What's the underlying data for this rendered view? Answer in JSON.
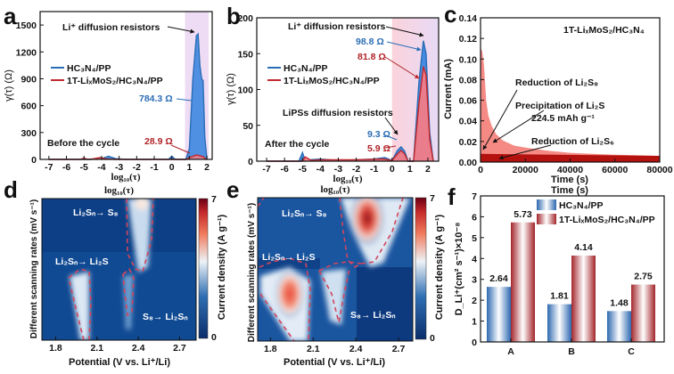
{
  "panels": {
    "a": "a",
    "b": "b",
    "c": "c",
    "d": "d",
    "e": "e",
    "f": "f"
  },
  "colors": {
    "blue_line": "#2a6db5",
    "blue_fill": "#3d87e0",
    "red_line": "#c0282d",
    "red_fill": "#f27c86",
    "c_light": "#f58a84",
    "c_dark": "#b3120f"
  },
  "chart_data": [
    {
      "id": "a",
      "type": "area",
      "xlabel": "log₁₀(τ)",
      "ylabel": "γ(τ) (Ω)",
      "xlim": [
        -7.5,
        2.3
      ],
      "ylim": [
        0,
        1650
      ],
      "xticks": [
        -7,
        -6,
        -5,
        -4,
        -3,
        -2,
        -1,
        0,
        1,
        2
      ],
      "yticks": [
        0,
        300,
        600,
        900,
        1200,
        1500
      ],
      "highlight_range": [
        0.75,
        2.1
      ],
      "series": [
        {
          "name": "HC₃N₄/PP",
          "x": [
            -7,
            -5.2,
            -4.6,
            -4,
            -3.6,
            -3.2,
            -2.6,
            -1.2,
            -1,
            -0.8,
            -0.2,
            0,
            0.2,
            0.8,
            1.0,
            1.2,
            1.4,
            1.5,
            1.6,
            1.7,
            1.78,
            1.88,
            2.0
          ],
          "y": [
            0,
            0,
            0,
            10,
            35,
            8,
            0,
            0,
            3,
            0,
            0,
            35,
            0,
            0,
            120,
            900,
            1380,
            1400,
            1050,
            900,
            880,
            250,
            0
          ]
        },
        {
          "name": "1T-LiₓMoS₂/HC₃N₄/PP",
          "x": [
            -7,
            -5.2,
            -5,
            -4.8,
            -4.5,
            -4.1,
            -3.7,
            -3.2,
            0.8,
            1.0,
            1.4,
            1.8,
            1.95,
            2.0
          ],
          "y": [
            0,
            0,
            15,
            0,
            5,
            20,
            5,
            0,
            0,
            20,
            50,
            30,
            0,
            0
          ]
        }
      ],
      "annotations": {
        "title": "Li⁺ diffusion resistors",
        "blue_value": "784.3 Ω",
        "red_value": "28.9 Ω",
        "condition": "Before the cycle"
      }
    },
    {
      "id": "b",
      "type": "area",
      "xlabel": "log₁₀(τ)",
      "ylabel": "γ(τ) (Ω)",
      "xlim": [
        -7.55,
        2.6
      ],
      "ylim": [
        0,
        200
      ],
      "xticks": [
        -7,
        -6,
        -5,
        -4,
        -3,
        -2,
        -1,
        0,
        1,
        2
      ],
      "yticks": [
        0,
        50,
        100,
        150,
        200
      ],
      "highlight_range": [
        0,
        2.6
      ],
      "series": [
        {
          "name": "HC₃N₄/PP",
          "x": [
            -7,
            -5.2,
            -5,
            -4.85,
            -4.6,
            -4,
            -3,
            -2,
            -1,
            -0.4,
            0,
            0.3,
            0.5,
            0.7,
            0.9,
            1.2,
            1.5,
            1.75,
            1.9,
            2.1,
            2.3
          ],
          "y": [
            0,
            0,
            12,
            0,
            2,
            3,
            1,
            2,
            3,
            5,
            1,
            15,
            20,
            14,
            0,
            0,
            110,
            168,
            150,
            40,
            0
          ]
        },
        {
          "name": "1T-LiₓMoS₂/HC₃N₄/PP",
          "x": [
            -7,
            -5,
            -4.85,
            -4.5,
            -4,
            -2,
            -0.5,
            0,
            0.3,
            0.5,
            0.7,
            0.9,
            1.2,
            1.5,
            1.75,
            1.9,
            2.1,
            2.3
          ],
          "y": [
            0,
            0,
            6,
            1,
            2,
            2,
            3,
            1,
            10,
            15,
            10,
            0,
            0,
            80,
            132,
            120,
            30,
            0
          ]
        }
      ],
      "annotations": {
        "title": "Li⁺ diffusion resistors",
        "blue_value": "98.8 Ω",
        "red_value": "81.8 Ω",
        "lips_title": "LiPSs diffusion resistors",
        "blue_small": "9.3 Ω",
        "red_small": "5.9 Ω",
        "condition": "After the cycle"
      }
    },
    {
      "id": "c",
      "type": "area",
      "xlabel": "Time (s)",
      "ylabel": "Current (mA)",
      "xlim": [
        0,
        80000
      ],
      "ylim": [
        0,
        0.14
      ],
      "xticks": [
        0,
        20000,
        40000,
        60000,
        80000
      ],
      "yticks": [
        0.0,
        0.02,
        0.04,
        0.06,
        0.08,
        0.1,
        0.12,
        0.14
      ],
      "series": [
        {
          "name": "Precipitation of Li₂S",
          "x": [
            0,
            300,
            800,
            1500,
            2500,
            3500,
            5000,
            7000,
            10000,
            15000,
            20000,
            30000,
            40000,
            50000,
            60000,
            70000,
            80000
          ],
          "y": [
            0.105,
            0.11,
            0.107,
            0.095,
            0.06,
            0.045,
            0.035,
            0.027,
            0.021,
            0.016,
            0.014,
            0.011,
            0.009,
            0.008,
            0.0072,
            0.0066,
            0.006
          ]
        },
        {
          "name": "Reduction of Li₂S₆",
          "x": [
            0,
            80000
          ],
          "y": [
            0.008,
            0.006
          ]
        }
      ],
      "annotations": {
        "sample": "1T-LiₓMoS₂/HC₃N₄",
        "reduction_s8": "Reduction of Li₂S₈",
        "precipitation": "Precipitation of Li₂S",
        "capacity": "224.5 mAh g⁻¹",
        "reduction_s6": "Reduction of Li₂S₆"
      }
    },
    {
      "id": "d",
      "type": "heatmap",
      "xlabel": "Potential (V vs. Li⁺/Li)",
      "ylabel": "Different scanning rates (mV s⁻¹)",
      "xlim": [
        1.7,
        2.82
      ],
      "xticks": [
        1.8,
        2.1,
        2.4,
        2.7
      ],
      "colorbar": {
        "label": "Current density (A g⁻¹)",
        "min": 0,
        "max": 7
      },
      "annotations": {
        "ox": "Li₂Sₙ→ S₈",
        "red1": "Li₂Sₙ→ Li₂S",
        "red2": "S₈→ Li₂Sₙ"
      },
      "xlabel_axis_top": "log₁₀(τ)"
    },
    {
      "id": "e",
      "type": "heatmap",
      "xlabel": "Potential (V vs. Li⁺/Li)",
      "ylabel": "Different scanning rates (mV s⁻¹)",
      "xlim": [
        1.71,
        2.8
      ],
      "xticks": [
        1.8,
        2.1,
        2.4,
        2.7
      ],
      "colorbar": {
        "label": "Current density (A g⁻¹)",
        "min": 0,
        "max": 7
      },
      "annotations": {
        "ox": "Li₂Sₙ→ S₈",
        "red1": "Li₂Sₙ→ Li₂S",
        "red2": "S₈→ Li₂Sₙ"
      },
      "xlabel_axis_top": "log₁₀(τ)"
    },
    {
      "id": "f",
      "type": "bar",
      "xlabel": "",
      "ylabel": "D_Li⁺(cm² s⁻¹)×10⁻⁸",
      "categories": [
        "A",
        "B",
        "C"
      ],
      "ylim": [
        0,
        7
      ],
      "yticks": [
        0,
        1,
        2,
        3,
        4,
        5,
        6,
        7
      ],
      "series": [
        {
          "name": "HC₃N₄/PP",
          "values": [
            2.64,
            1.81,
            1.48
          ],
          "labels": [
            "2.64",
            "1.81",
            "1.48"
          ]
        },
        {
          "name": "1T-LiₓMoS₂/HC₃N₄/PP",
          "values": [
            5.73,
            4.14,
            2.75
          ],
          "labels": [
            "5.73",
            "4.14",
            "2.75"
          ]
        }
      ],
      "xlabel_axis_top": "Time (s)"
    }
  ]
}
